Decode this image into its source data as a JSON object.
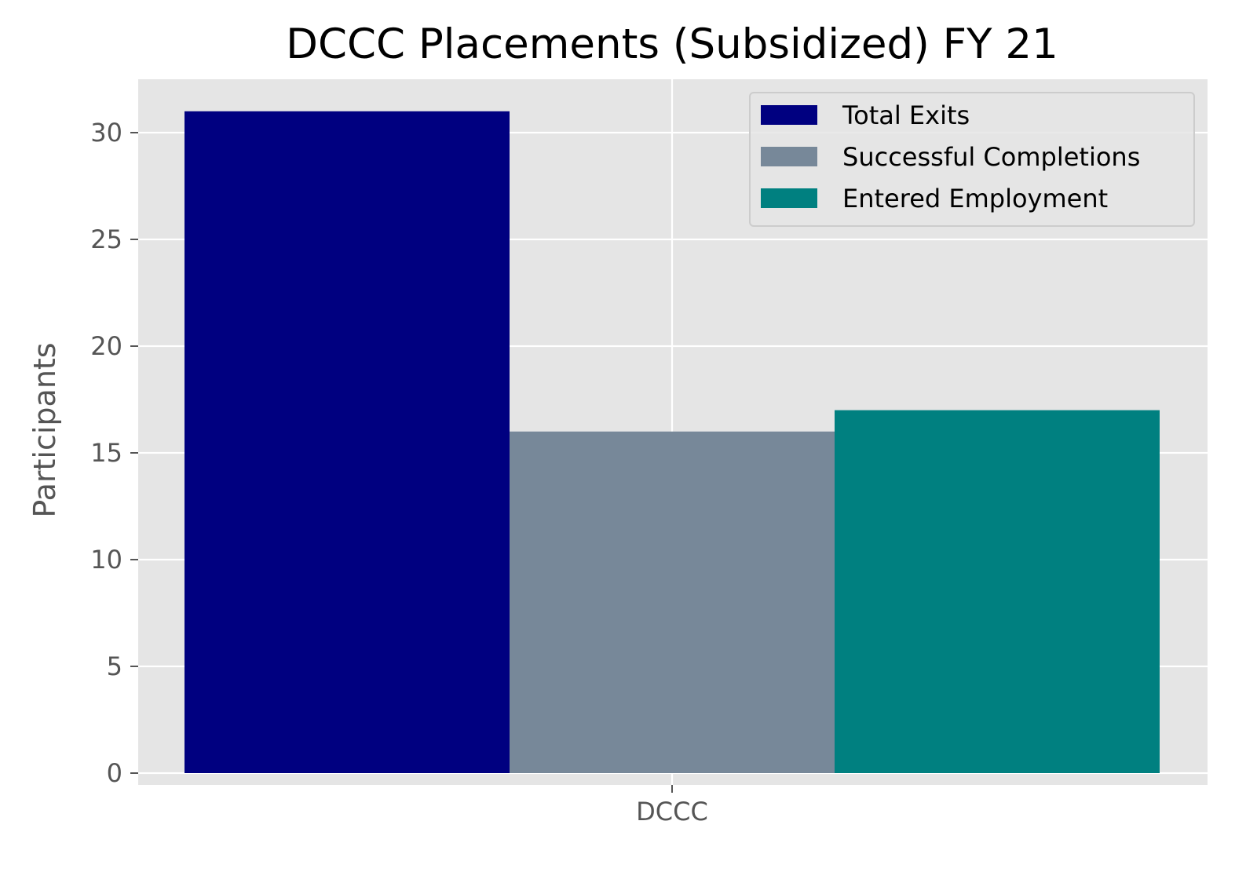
{
  "chart_data": {
    "type": "bar",
    "title": "DCCC Placements (Subsidized) FY 21",
    "xlabel": "",
    "ylabel": "Participants",
    "categories": [
      "DCCC"
    ],
    "series": [
      {
        "name": "Total Exits",
        "color": "#000080",
        "values": [
          31
        ]
      },
      {
        "name": "Successful Completions",
        "color": "#778899",
        "values": [
          16
        ]
      },
      {
        "name": "Entered Employment",
        "color": "#008080",
        "values": [
          17
        ]
      }
    ],
    "ylim": [
      0,
      32.5
    ],
    "yticks": [
      0,
      5,
      10,
      15,
      20,
      25,
      30
    ],
    "ytick_labels": [
      "0",
      "5",
      "10",
      "15",
      "20",
      "25",
      "30"
    ],
    "grid": true,
    "legend_position": "top-right",
    "background_color": "#e5e5e5",
    "grid_color": "#ffffff"
  }
}
